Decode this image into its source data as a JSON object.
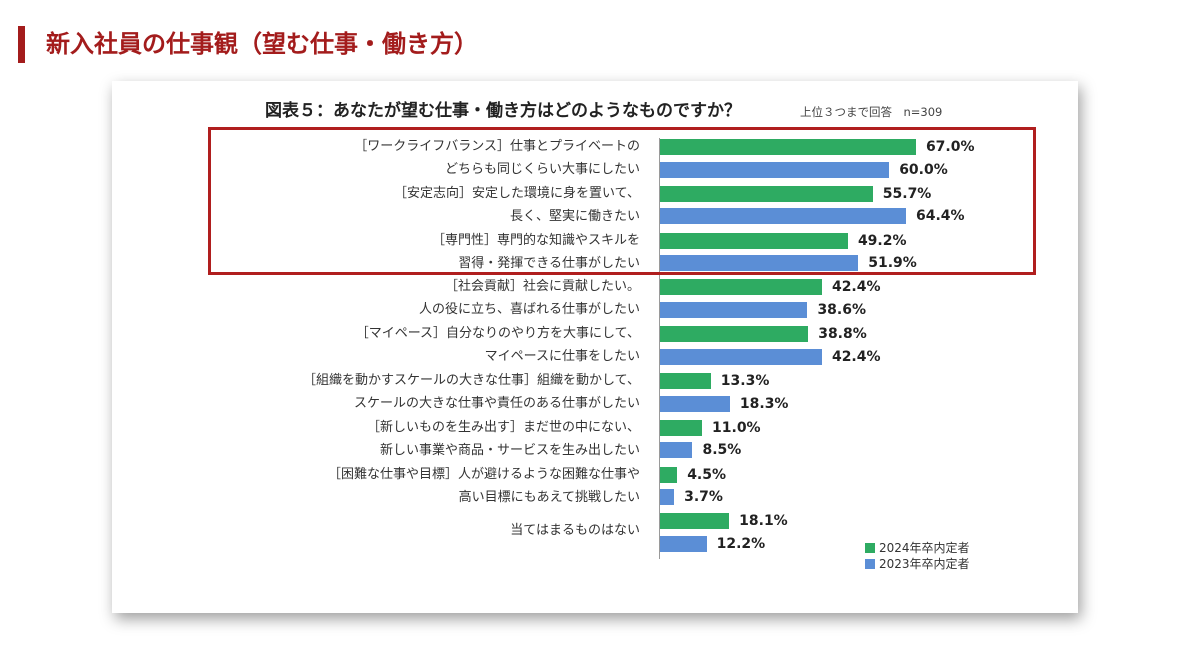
{
  "page": {
    "title": "新入社員の仕事観（望む仕事・働き方）"
  },
  "colors": {
    "accent": "#a31c1c",
    "series_2024": "#2eab62",
    "series_2023": "#5b8ed6"
  },
  "chart_data": {
    "type": "bar",
    "orientation": "horizontal",
    "title": "図表５：あなたが望む仕事・働き方はどのようなものですか？",
    "note": "上位３つまで回答　n=309",
    "categories": [
      [
        "［ワークライフバランス］仕事とプライベートの",
        "どちらも同じくらい大事にしたい"
      ],
      [
        "［安定志向］安定した環境に身を置いて、",
        "長く、堅実に働きたい"
      ],
      [
        "［専門性］専門的な知識やスキルを",
        "習得・発揮できる仕事がしたい"
      ],
      [
        "［社会貢献］社会に貢献したい。",
        "人の役に立ち、喜ばれる仕事がしたい"
      ],
      [
        "［マイペース］自分なりのやり方を大事にして、",
        "マイペースに仕事をしたい"
      ],
      [
        "［組織を動かすスケールの大きな仕事］組織を動かして、",
        "スケールの大きな仕事や責任のある仕事がしたい"
      ],
      [
        "［新しいものを生み出す］まだ世の中にない、",
        "新しい事業や商品・サービスを生み出したい"
      ],
      [
        "［困難な仕事や目標］人が避けるような困難な仕事や",
        "高い目標にもあえて挑戦したい"
      ],
      [
        "当てはまるものはない"
      ]
    ],
    "series": [
      {
        "name": "2024年卒内定者",
        "values": [
          67.0,
          55.7,
          49.2,
          42.4,
          38.8,
          13.3,
          11.0,
          4.5,
          18.1
        ],
        "labels": [
          "67.0%",
          "55.7%",
          "49.2%",
          "42.4%",
          "38.8%",
          "13.3%",
          "11.0%",
          "4.5%",
          "18.1%"
        ]
      },
      {
        "name": "2023年卒内定者",
        "values": [
          60.0,
          64.4,
          51.9,
          38.6,
          42.4,
          18.3,
          8.5,
          3.7,
          12.2
        ],
        "labels": [
          "60.0%",
          "64.4%",
          "51.9%",
          "38.6%",
          "42.4%",
          "18.3%",
          "8.5%",
          "3.7%",
          "12.2%"
        ]
      }
    ],
    "xlim": [
      0,
      100
    ],
    "grid": false,
    "legend_position": "bottom-right",
    "highlighted_categories": [
      0,
      1,
      2
    ]
  }
}
